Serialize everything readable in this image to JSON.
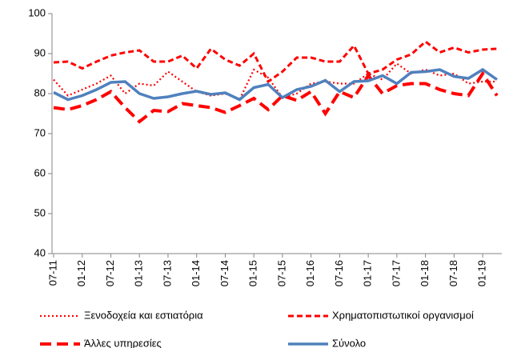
{
  "chart_data": {
    "type": "line",
    "categories": [
      "07-11",
      null,
      "01-12",
      null,
      "07-12",
      null,
      "01-13",
      null,
      "07-13",
      null,
      "01-14",
      null,
      "07-14",
      null,
      "01-15",
      null,
      "07-15",
      null,
      "01-16",
      null,
      "07-16",
      null,
      "01-17",
      null,
      "07-17",
      null,
      "01-18",
      null,
      "07-18",
      null,
      "01-19",
      null
    ],
    "series": [
      {
        "name": "Ξενοδοχεία και εστιατόρια",
        "color": "#ff0000",
        "style": "dotted",
        "values": [
          83.5,
          79.5,
          81,
          82.5,
          84.5,
          80,
          82.5,
          82,
          85.5,
          83,
          80.5,
          79.5,
          80,
          78.5,
          86,
          84,
          79,
          80,
          82.5,
          83,
          82.5,
          82.5,
          85,
          83.5,
          87.5,
          85,
          86,
          84.5,
          85,
          82.5,
          83,
          83
        ]
      },
      {
        "name": "Χρηματοπιστωτικοί οργανισμοί",
        "color": "#ff0000",
        "style": "dashed",
        "values": [
          87.8,
          88,
          86.3,
          88,
          89.5,
          90.3,
          90.8,
          88,
          88,
          89.5,
          86.3,
          91.2,
          88.5,
          87,
          90,
          83,
          85.5,
          89,
          89,
          88,
          88,
          92,
          85,
          86,
          88.5,
          89.8,
          93,
          90.3,
          91.5,
          90.3,
          91,
          91.2
        ]
      },
      {
        "name": "Άλλες υπηρεσίες",
        "color": "#ff0000",
        "style": "longdash",
        "values": [
          76.5,
          76,
          77,
          78.5,
          80.5,
          76.5,
          73,
          75.8,
          75.5,
          77.5,
          77,
          76.5,
          75.3,
          77,
          78.8,
          76,
          79.5,
          78.3,
          80.5,
          75,
          80.5,
          79,
          84.5,
          80,
          82,
          82.5,
          82.5,
          81,
          80,
          79.5,
          85,
          79.5
        ]
      },
      {
        "name": "Σύνολο",
        "color": "#4f81bd",
        "style": "solid",
        "values": [
          80.3,
          78.5,
          79.5,
          81,
          82.8,
          83,
          80,
          78.8,
          79.2,
          80,
          80.6,
          79.8,
          80.2,
          78.5,
          81.5,
          82.3,
          79,
          81,
          81.8,
          83.3,
          80.5,
          83,
          83.2,
          84.5,
          82.5,
          85.3,
          85.5,
          86,
          84.3,
          83.8,
          86,
          83.5
        ]
      }
    ],
    "ylim": [
      40,
      100
    ],
    "yticks": [
      40,
      50,
      60,
      70,
      80,
      90,
      100
    ],
    "grid": false
  }
}
